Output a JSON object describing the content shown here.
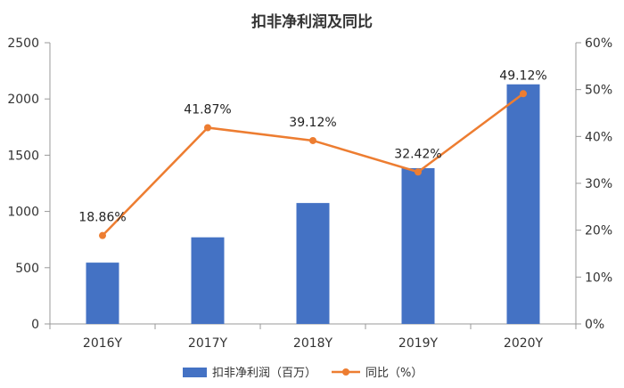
{
  "chart_data": {
    "type": "bar",
    "title": "扣非净利润及同比",
    "categories": [
      "2016Y",
      "2017Y",
      "2018Y",
      "2019Y",
      "2020Y"
    ],
    "series": [
      {
        "name": "扣非净利润（百万）",
        "type": "bar",
        "axis": "left",
        "values": [
          545,
          770,
          1075,
          1385,
          2130
        ],
        "color": "#4472C4"
      },
      {
        "name": "同比（%）",
        "type": "line",
        "axis": "right",
        "values": [
          18.86,
          41.87,
          39.12,
          32.42,
          49.12
        ],
        "color": "#ED7D31",
        "labels": [
          "18.86%",
          "41.87%",
          "39.12%",
          "32.42%",
          "49.12%"
        ]
      }
    ],
    "y_left": {
      "min": 0,
      "max": 2500,
      "ticks": [
        "0",
        "500",
        "1000",
        "1500",
        "2000",
        "2500"
      ]
    },
    "y_right": {
      "min": 0,
      "max": 60,
      "ticks": [
        "0%",
        "10%",
        "20%",
        "30%",
        "40%",
        "50%",
        "60%"
      ]
    },
    "grid": false,
    "legend": "bottom"
  }
}
